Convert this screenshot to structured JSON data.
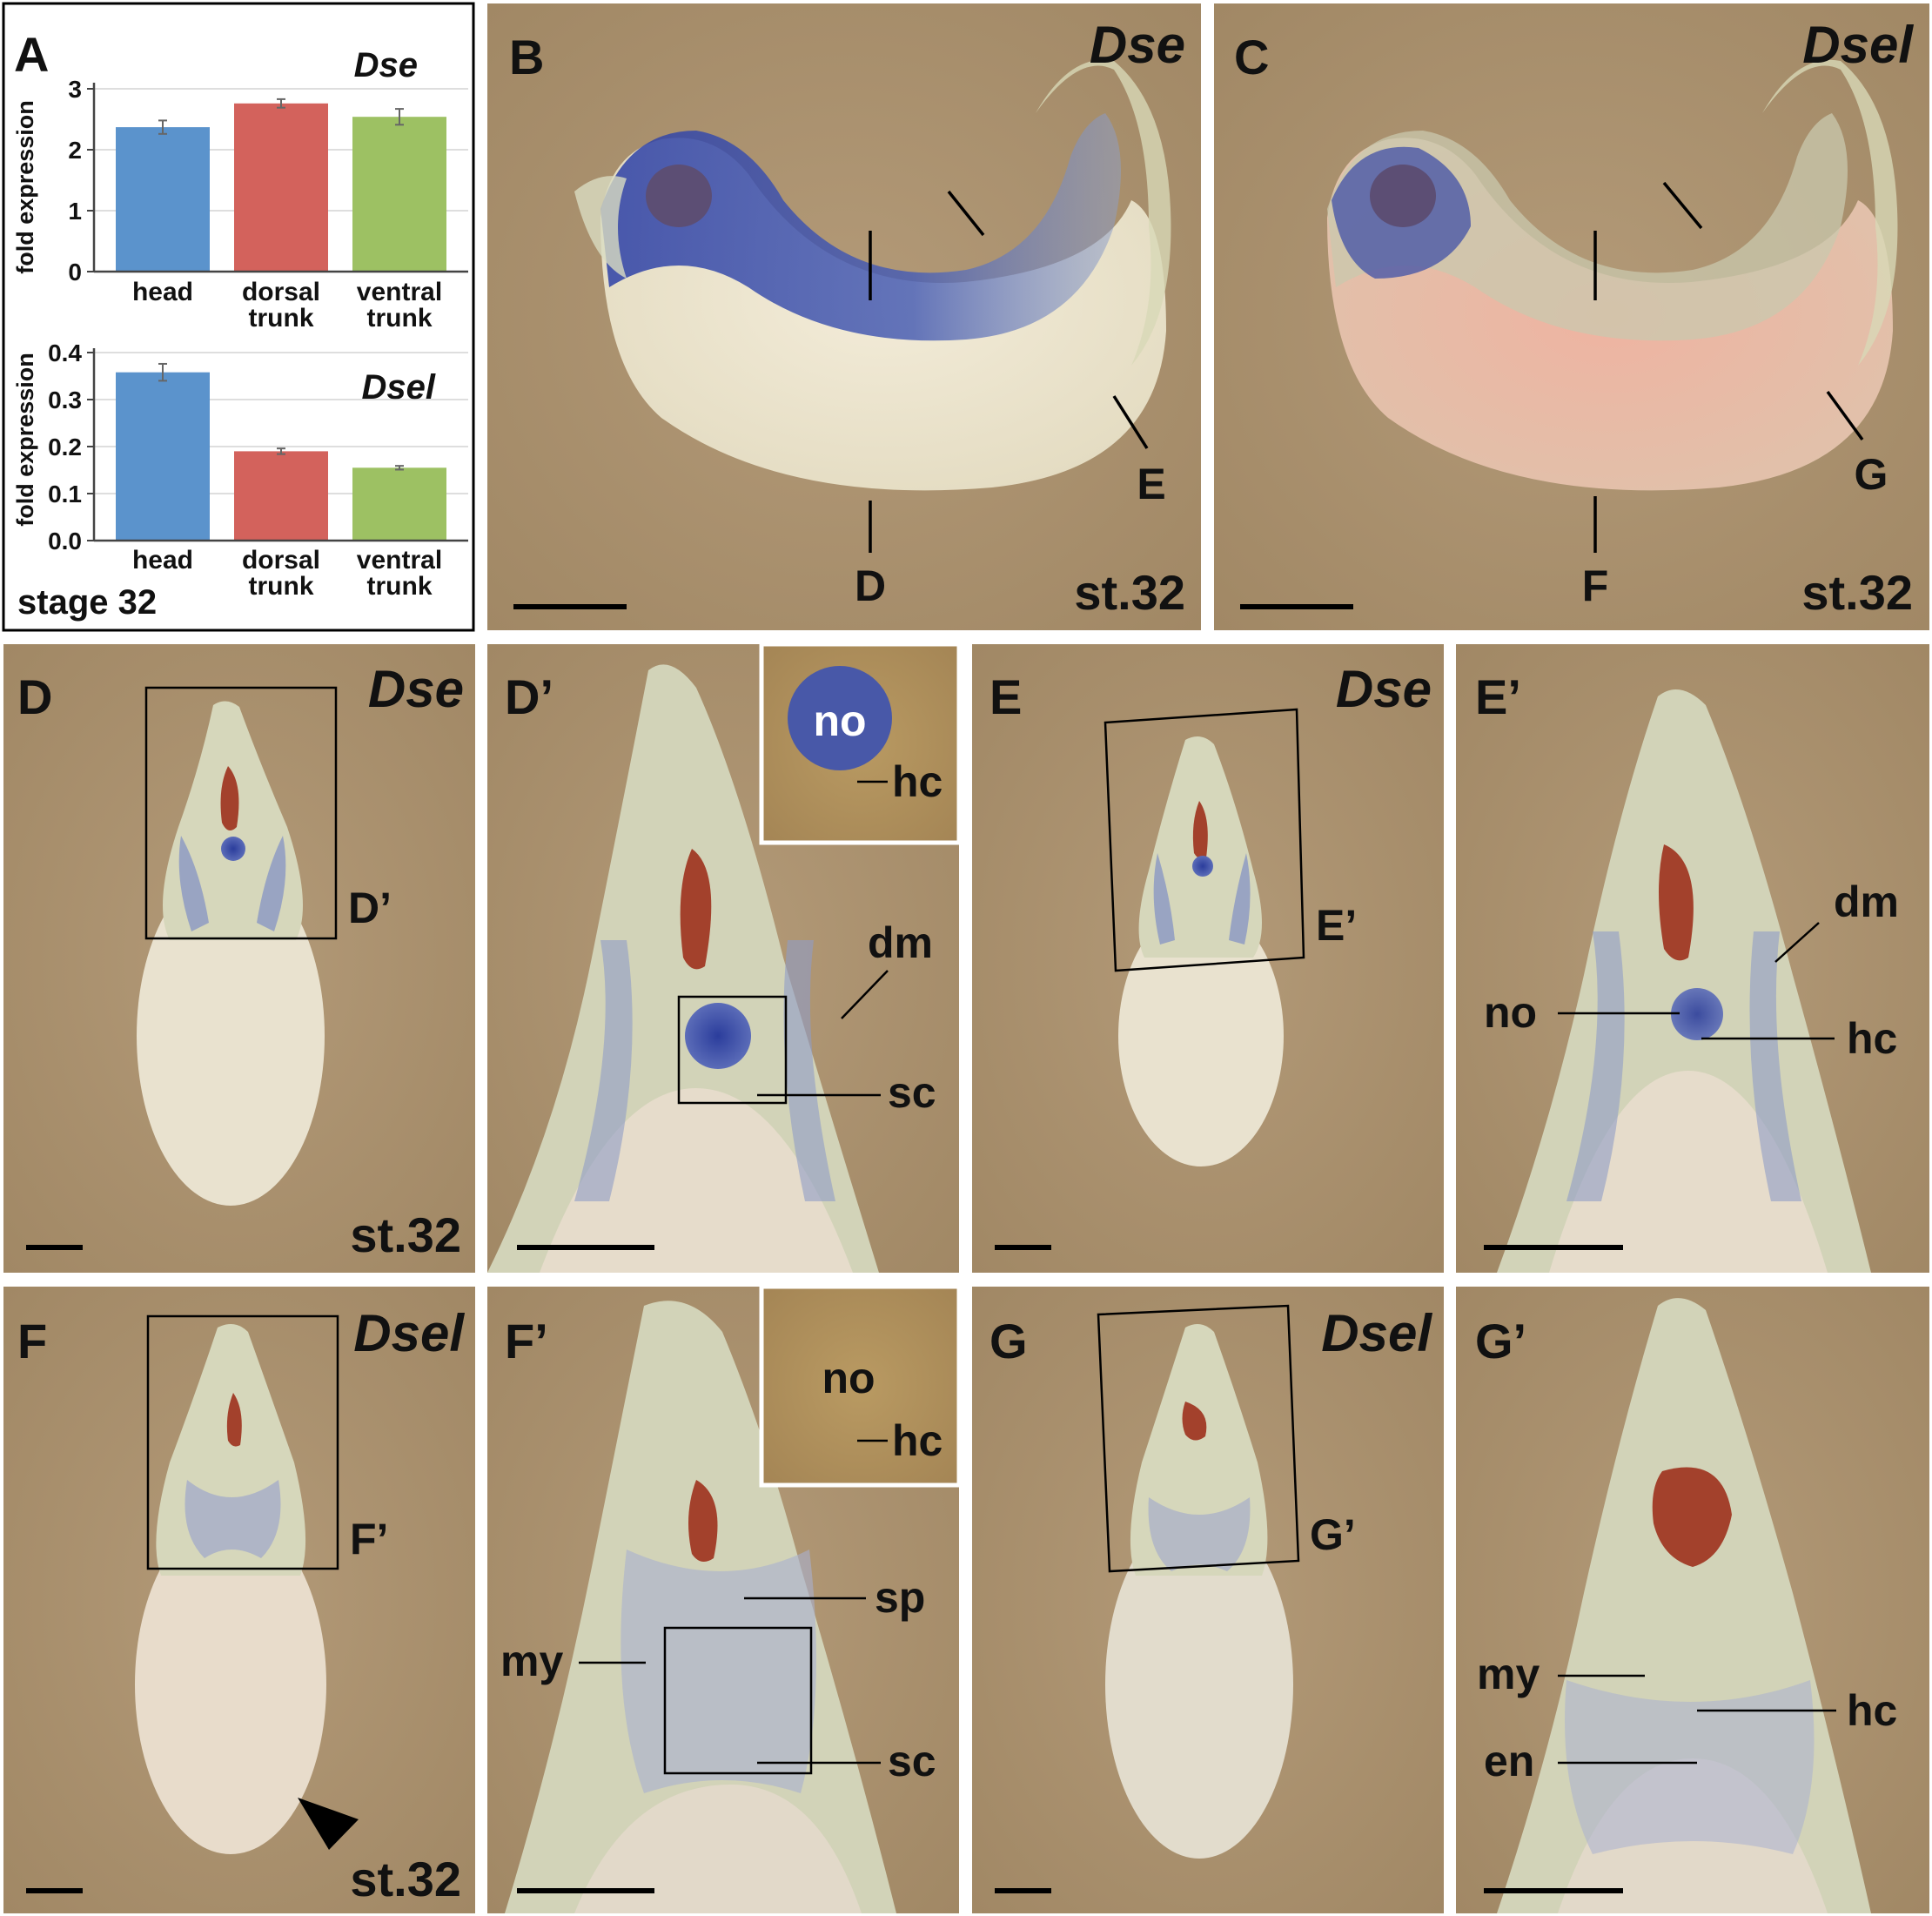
{
  "panel_a": {
    "letter": "A",
    "stage": "stage 32",
    "charts": [
      {
        "gene": "Dse",
        "ylabel": "fold expression",
        "yticks": [
          "0",
          "1",
          "2",
          "3"
        ],
        "categories": [
          [
            "head"
          ],
          [
            "dorsal",
            "trunk"
          ],
          [
            "ventral",
            "trunk"
          ]
        ]
      },
      {
        "gene": "Dsel",
        "ylabel": "fold expression",
        "yticks": [
          "0.0",
          "0.1",
          "0.2",
          "0.3",
          "0.4"
        ],
        "categories": [
          [
            "head"
          ],
          [
            "dorsal",
            "trunk"
          ],
          [
            "ventral",
            "trunk"
          ]
        ]
      }
    ]
  },
  "chart_data": [
    {
      "type": "bar",
      "title": "Dse",
      "ylabel": "fold expression",
      "categories": [
        "head",
        "dorsal trunk",
        "ventral trunk"
      ],
      "values": [
        2.37,
        2.76,
        2.54
      ],
      "errors": [
        0.11,
        0.07,
        0.13
      ],
      "ylim": [
        0,
        3
      ],
      "colors": [
        "#5b93cc",
        "#d3625c",
        "#9dc163"
      ],
      "grid": true
    },
    {
      "type": "bar",
      "title": "Dsel",
      "ylabel": "fold expression",
      "categories": [
        "head",
        "dorsal trunk",
        "ventral trunk"
      ],
      "values": [
        0.358,
        0.19,
        0.155
      ],
      "errors": [
        0.018,
        0.006,
        0.004
      ],
      "ylim": [
        0,
        0.4
      ],
      "colors": [
        "#5b93cc",
        "#d3625c",
        "#9dc163"
      ],
      "grid": true
    }
  ],
  "panels": {
    "B": {
      "letter": "B",
      "gene": "Dse",
      "stage": "st.32",
      "cut_d": "D",
      "cut_e": "E"
    },
    "C": {
      "letter": "C",
      "gene": "Dsel",
      "stage": "st.32",
      "cut_f": "F",
      "cut_g": "G"
    },
    "D": {
      "letter": "D",
      "gene": "Dse",
      "stage": "st.32",
      "box": "D’"
    },
    "Dp": {
      "letter": "D’",
      "inset_no": "no",
      "inset_hc": "hc",
      "dm": "dm",
      "sc": "sc"
    },
    "E": {
      "letter": "E",
      "gene": "Dse",
      "box": "E’"
    },
    "Ep": {
      "letter": "E’",
      "dm": "dm",
      "no": "no",
      "hc": "hc"
    },
    "F": {
      "letter": "F",
      "gene": "Dsel",
      "stage": "st.32",
      "box": "F’"
    },
    "Fp": {
      "letter": "F’",
      "inset_no": "no",
      "inset_hc": "hc",
      "sp": "sp",
      "my": "my",
      "sc": "sc"
    },
    "G": {
      "letter": "G",
      "gene": "Dsel",
      "box": "G’"
    },
    "Gp": {
      "letter": "G’",
      "my": "my",
      "hc": "hc",
      "en": "en"
    }
  },
  "colors": {
    "background_tan": "#a98f6e",
    "embryo_pale": "#e8e6cc",
    "stain_blue": "#3a4aa6",
    "stain_red": "#a3412c",
    "yolk_pink": "#e9b3a4"
  }
}
